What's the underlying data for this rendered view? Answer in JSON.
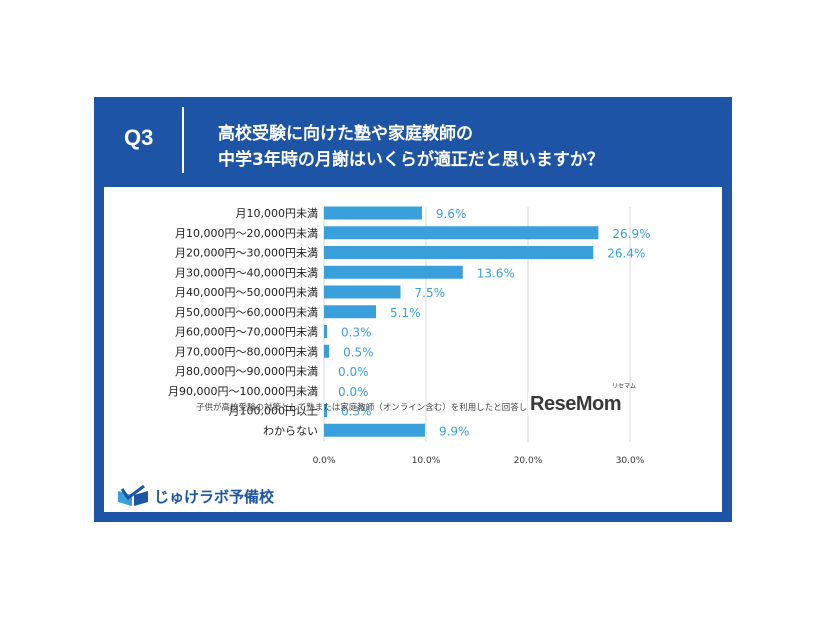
{
  "header": {
    "question": "Q3",
    "title_line1": "高校受験に向けた塾や家庭教師の",
    "title_line2": "中学3年時の月謝はいくらが適正だと思いますか？"
  },
  "footer": {
    "logo_text": "じゅけラボ予備校",
    "note": "子供が高校受験の対策として塾または家庭教師（オンライン含む）を利用したと回答した40～",
    "brand": "ReseMom",
    "brand_kana": "リセマム"
  },
  "colors": {
    "frame": "#1e54a6",
    "bar": "#3aa0dc",
    "value_text": "#3aa0dc",
    "grid": "#d9d9d9"
  },
  "chart_data": {
    "type": "bar",
    "orientation": "horizontal",
    "categories": [
      "月10,000円未満",
      "月10,000円～20,000円未満",
      "月20,000円～30,000円未満",
      "月30,000円～40,000円未満",
      "月40,000円～50,000円未満",
      "月50,000円～60,000円未満",
      "月60,000円～70,000円未満",
      "月70,000円～80,000円未満",
      "月80,000円～90,000円未満",
      "月90,000円～100,000円未満",
      "月100,000円以上",
      "わからない"
    ],
    "values": [
      9.6,
      26.9,
      26.4,
      13.6,
      7.5,
      5.1,
      0.3,
      0.5,
      0.0,
      0.0,
      0.3,
      9.9
    ],
    "value_labels": [
      "9.6%",
      "26.9%",
      "26.4%",
      "13.6%",
      "7.5%",
      "5.1%",
      "0.3%",
      "0.5%",
      "0.0%",
      "0.0%",
      "0.3%",
      "9.9%"
    ],
    "xlim": [
      0,
      30
    ],
    "xticks": [
      0,
      10,
      20,
      30
    ],
    "xtick_labels": [
      "0.0%",
      "10.0%",
      "20.0%",
      "30.0%"
    ],
    "grid": true,
    "legend": "none"
  }
}
